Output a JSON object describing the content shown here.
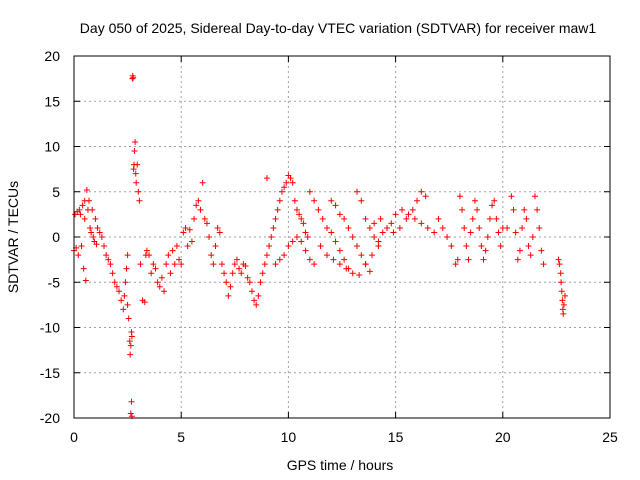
{
  "chart_data": {
    "type": "scatter",
    "title": "Day 050 of 2025, Sidereal Day-to-day VTEC variation (SDTVAR) for receiver maw1",
    "xlabel": "GPS time / hours",
    "ylabel": "SDTVAR / TECUs",
    "xlim": [
      0,
      25
    ],
    "ylim": [
      -20,
      20
    ],
    "xticks": [
      0,
      5,
      10,
      15,
      20,
      25
    ],
    "yticks": [
      -20,
      -15,
      -10,
      -5,
      0,
      5,
      10,
      15,
      20
    ],
    "grid": true,
    "marker": "+",
    "color": "#ff0000",
    "series": [
      {
        "name": "SDTVAR",
        "points": [
          [
            0.0,
            -1.5
          ],
          [
            0.05,
            2.5
          ],
          [
            0.1,
            -1.2
          ],
          [
            0.15,
            2.8
          ],
          [
            0.2,
            -2.0
          ],
          [
            0.25,
            3.0
          ],
          [
            0.3,
            2.5
          ],
          [
            0.35,
            -1.0
          ],
          [
            0.4,
            3.5
          ],
          [
            0.45,
            -3.5
          ],
          [
            0.5,
            4.0
          ],
          [
            0.5,
            2.0
          ],
          [
            0.55,
            -4.8
          ],
          [
            0.6,
            5.2
          ],
          [
            0.65,
            3.0
          ],
          [
            0.7,
            4.0
          ],
          [
            0.75,
            1.0
          ],
          [
            0.8,
            0.5
          ],
          [
            0.85,
            3.0
          ],
          [
            0.9,
            0.0
          ],
          [
            0.95,
            -0.5
          ],
          [
            1.0,
            2.0
          ],
          [
            1.05,
            -0.8
          ],
          [
            1.1,
            1.0
          ],
          [
            1.2,
            0.5
          ],
          [
            1.3,
            0.0
          ],
          [
            1.4,
            -1.0
          ],
          [
            1.5,
            -2.0
          ],
          [
            1.6,
            -2.5
          ],
          [
            1.7,
            -3.0
          ],
          [
            1.8,
            -4.0
          ],
          [
            1.9,
            -5.0
          ],
          [
            2.0,
            -5.5
          ],
          [
            2.1,
            -6.0
          ],
          [
            2.2,
            -7.0
          ],
          [
            2.3,
            -8.0
          ],
          [
            2.35,
            -6.5
          ],
          [
            2.4,
            -5.0
          ],
          [
            2.45,
            -3.5
          ],
          [
            2.5,
            -2.0
          ],
          [
            2.5,
            -7.5
          ],
          [
            2.55,
            -9.0
          ],
          [
            2.6,
            -11.5
          ],
          [
            2.62,
            -13.0
          ],
          [
            2.65,
            -12.0
          ],
          [
            2.68,
            -10.5
          ],
          [
            2.7,
            -11.0
          ],
          [
            2.72,
            17.5
          ],
          [
            2.74,
            17.8
          ],
          [
            2.76,
            17.6
          ],
          [
            2.78,
            7.5
          ],
          [
            2.8,
            8.0
          ],
          [
            2.82,
            9.5
          ],
          [
            2.85,
            10.5
          ],
          [
            2.88,
            7.0
          ],
          [
            2.9,
            6.0
          ],
          [
            2.95,
            8.0
          ],
          [
            3.0,
            5.0
          ],
          [
            3.05,
            4.0
          ],
          [
            3.1,
            -3.0
          ],
          [
            2.68,
            -18.2
          ],
          [
            2.65,
            -19.5
          ],
          [
            2.7,
            -19.8
          ],
          [
            3.2,
            -7.0
          ],
          [
            3.3,
            -7.2
          ],
          [
            3.35,
            -2.0
          ],
          [
            3.4,
            -1.5
          ],
          [
            3.5,
            -2.0
          ],
          [
            3.6,
            -4.0
          ],
          [
            3.7,
            -3.0
          ],
          [
            3.8,
            -3.5
          ],
          [
            3.9,
            -5.0
          ],
          [
            4.0,
            -5.5
          ],
          [
            4.1,
            -4.5
          ],
          [
            4.2,
            -6.0
          ],
          [
            4.3,
            -3.0
          ],
          [
            4.4,
            -2.0
          ],
          [
            4.5,
            -4.0
          ],
          [
            4.6,
            -1.5
          ],
          [
            4.7,
            -3.0
          ],
          [
            4.8,
            -1.0
          ],
          [
            4.9,
            -2.5
          ],
          [
            5.0,
            -3.0
          ],
          [
            5.1,
            0.5
          ],
          [
            5.2,
            1.0
          ],
          [
            5.3,
            -1.0
          ],
          [
            5.4,
            0.8
          ],
          [
            5.5,
            -0.5
          ],
          [
            5.6,
            2.0
          ],
          [
            5.7,
            3.5
          ],
          [
            5.8,
            4.0
          ],
          [
            5.9,
            3.0
          ],
          [
            6.0,
            6.0
          ],
          [
            6.1,
            2.0
          ],
          [
            6.2,
            1.5
          ],
          [
            6.3,
            0.0
          ],
          [
            6.4,
            -2.0
          ],
          [
            6.5,
            -3.0
          ],
          [
            6.6,
            -1.0
          ],
          [
            6.7,
            1.0
          ],
          [
            6.8,
            0.5
          ],
          [
            6.9,
            -3.0
          ],
          [
            7.0,
            -4.0
          ],
          [
            7.1,
            -5.0
          ],
          [
            7.2,
            -6.5
          ],
          [
            7.3,
            -5.5
          ],
          [
            7.4,
            -4.0
          ],
          [
            7.5,
            -3.0
          ],
          [
            7.6,
            -2.5
          ],
          [
            7.7,
            -3.5
          ],
          [
            7.8,
            -4.0
          ],
          [
            7.9,
            -3.0
          ],
          [
            8.0,
            -3.2
          ],
          [
            8.1,
            -4.5
          ],
          [
            8.2,
            -5.0
          ],
          [
            8.3,
            -6.0
          ],
          [
            8.4,
            -7.0
          ],
          [
            8.5,
            -7.5
          ],
          [
            8.6,
            -6.5
          ],
          [
            8.7,
            -5.0
          ],
          [
            8.8,
            -4.0
          ],
          [
            8.9,
            -3.0
          ],
          [
            9.0,
            -2.0
          ],
          [
            9.0,
            6.5
          ],
          [
            9.1,
            -1.0
          ],
          [
            9.2,
            0.0
          ],
          [
            9.3,
            1.0
          ],
          [
            9.4,
            2.0
          ],
          [
            9.5,
            3.0
          ],
          [
            9.6,
            4.0
          ],
          [
            9.7,
            5.0
          ],
          [
            9.8,
            5.5
          ],
          [
            9.9,
            6.0
          ],
          [
            10.0,
            6.8
          ],
          [
            10.1,
            6.5
          ],
          [
            10.2,
            6.0
          ],
          [
            10.3,
            4.0
          ],
          [
            10.4,
            3.0
          ],
          [
            10.5,
            2.5
          ],
          [
            10.6,
            2.0
          ],
          [
            10.7,
            1.5
          ],
          [
            10.8,
            0.5
          ],
          [
            10.9,
            0.0
          ],
          [
            9.4,
            -3.0
          ],
          [
            9.6,
            -2.5
          ],
          [
            9.8,
            -2.0
          ],
          [
            10.0,
            -1.0
          ],
          [
            10.2,
            -0.5
          ],
          [
            10.4,
            0.0
          ],
          [
            10.6,
            -0.5
          ],
          [
            10.8,
            -1.5
          ],
          [
            11.0,
            -2.5
          ],
          [
            11.2,
            -3.0
          ],
          [
            11.0,
            5.0
          ],
          [
            11.2,
            4.0
          ],
          [
            11.4,
            3.0
          ],
          [
            11.6,
            2.0
          ],
          [
            11.8,
            1.0
          ],
          [
            12.0,
            0.5
          ],
          [
            12.2,
            -0.5
          ],
          [
            12.4,
            -1.5
          ],
          [
            12.6,
            -2.5
          ],
          [
            12.8,
            -3.5
          ],
          [
            12.0,
            4.0
          ],
          [
            12.2,
            3.5
          ],
          [
            12.4,
            2.5
          ],
          [
            12.6,
            2.0
          ],
          [
            12.8,
            1.0
          ],
          [
            13.0,
            0.0
          ],
          [
            13.2,
            -1.0
          ],
          [
            13.4,
            -2.0
          ],
          [
            13.6,
            -3.0
          ],
          [
            13.8,
            -3.8
          ],
          [
            11.5,
            -1.0
          ],
          [
            11.8,
            -2.0
          ],
          [
            12.1,
            -2.5
          ],
          [
            12.4,
            -3.0
          ],
          [
            12.7,
            -3.5
          ],
          [
            13.0,
            -4.0
          ],
          [
            13.3,
            -4.2
          ],
          [
            13.6,
            -3.0
          ],
          [
            13.9,
            -2.0
          ],
          [
            14.2,
            -1.0
          ],
          [
            13.2,
            5.0
          ],
          [
            13.4,
            4.0
          ],
          [
            13.6,
            2.0
          ],
          [
            13.8,
            1.0
          ],
          [
            14.0,
            0.0
          ],
          [
            14.2,
            -0.5
          ],
          [
            14.4,
            0.5
          ],
          [
            14.6,
            1.0
          ],
          [
            14.8,
            1.5
          ],
          [
            15.0,
            2.5
          ],
          [
            14.0,
            1.5
          ],
          [
            14.3,
            2.0
          ],
          [
            14.6,
            1.0
          ],
          [
            14.9,
            0.5
          ],
          [
            15.2,
            1.0
          ],
          [
            15.5,
            2.0
          ],
          [
            15.8,
            3.0
          ],
          [
            16.0,
            4.0
          ],
          [
            16.2,
            5.0
          ],
          [
            16.4,
            4.5
          ],
          [
            15.3,
            3.0
          ],
          [
            15.6,
            2.5
          ],
          [
            15.9,
            2.0
          ],
          [
            16.2,
            1.5
          ],
          [
            16.5,
            1.0
          ],
          [
            16.8,
            0.5
          ],
          [
            17.0,
            2.0
          ],
          [
            17.2,
            1.0
          ],
          [
            17.4,
            0.0
          ],
          [
            17.6,
            -1.0
          ],
          [
            17.8,
            -3.0
          ],
          [
            17.9,
            -2.5
          ],
          [
            18.0,
            4.5
          ],
          [
            18.1,
            3.0
          ],
          [
            18.2,
            1.0
          ],
          [
            18.3,
            -1.0
          ],
          [
            18.4,
            -2.5
          ],
          [
            18.5,
            0.5
          ],
          [
            18.6,
            2.0
          ],
          [
            18.7,
            4.0
          ],
          [
            18.8,
            3.0
          ],
          [
            18.9,
            1.0
          ],
          [
            19.0,
            -1.0
          ],
          [
            19.1,
            -2.5
          ],
          [
            19.2,
            -1.5
          ],
          [
            19.3,
            0.0
          ],
          [
            19.4,
            2.0
          ],
          [
            19.5,
            3.5
          ],
          [
            19.6,
            4.0
          ],
          [
            19.7,
            2.0
          ],
          [
            19.8,
            0.5
          ],
          [
            19.9,
            -1.0
          ],
          [
            20.0,
            1.0
          ],
          [
            20.2,
            1.0
          ],
          [
            20.4,
            4.5
          ],
          [
            20.5,
            3.0
          ],
          [
            20.6,
            0.5
          ],
          [
            20.7,
            -2.5
          ],
          [
            20.8,
            -1.5
          ],
          [
            20.9,
            1.0
          ],
          [
            21.0,
            3.0
          ],
          [
            21.1,
            2.0
          ],
          [
            21.2,
            -1.0
          ],
          [
            21.3,
            -2.0
          ],
          [
            21.4,
            0.0
          ],
          [
            21.5,
            4.5
          ],
          [
            21.6,
            3.0
          ],
          [
            21.7,
            1.0
          ],
          [
            21.8,
            -1.5
          ],
          [
            21.9,
            -3.0
          ],
          [
            22.6,
            -2.5
          ],
          [
            22.65,
            -3.0
          ],
          [
            22.7,
            -4.0
          ],
          [
            22.72,
            -5.0
          ],
          [
            22.75,
            -6.0
          ],
          [
            22.78,
            -7.0
          ],
          [
            22.8,
            -8.0
          ],
          [
            22.82,
            -8.5
          ],
          [
            22.85,
            -7.5
          ],
          [
            22.9,
            -6.5
          ]
        ]
      }
    ]
  }
}
